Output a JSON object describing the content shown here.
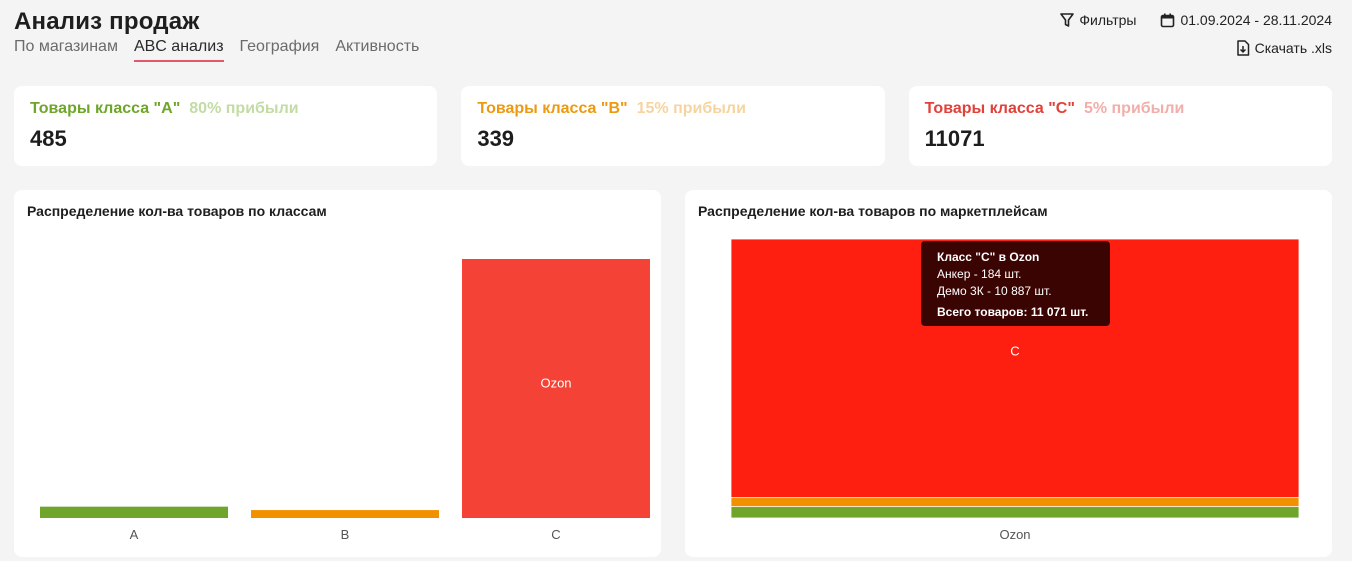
{
  "header": {
    "title": "Анализ продаж",
    "tabs": [
      {
        "label": "По магазинам",
        "active": false
      },
      {
        "label": "ABC анализ",
        "active": true
      },
      {
        "label": "География",
        "active": false
      },
      {
        "label": "Активность",
        "active": false
      }
    ],
    "filters_label": "Фильтры",
    "date_range": "01.09.2024 - 28.11.2024",
    "download_label": "Скачать .xls"
  },
  "cards": [
    {
      "label": "Товары класса \"A\"",
      "pct": "80% прибыли",
      "value": "485"
    },
    {
      "label": "Товары класса \"B\"",
      "pct": "15% прибыли",
      "value": "339"
    },
    {
      "label": "Товары класса \"C\"",
      "pct": "5% прибыли",
      "value": "11071"
    }
  ],
  "colors": {
    "A": "#6fa52b",
    "B": "#f29100",
    "C": "#f44336",
    "C_stack": "#ff1f10"
  },
  "left_chart": {
    "title": "Распределение кол-ва товаров по классам"
  },
  "right_chart": {
    "title": "Распределение кол-ва товаров по маркетплейсам",
    "tooltip": {
      "title": "Класс \"С\" в Ozon",
      "line1": "Анкер - 184 шт.",
      "line2": "Демо 3К - 10 887 шт.",
      "total": "Всего товаров: 11 071 шт."
    }
  },
  "chart_data": [
    {
      "type": "bar",
      "title": "Распределение кол-ва товаров по классам",
      "categories": [
        "A",
        "B",
        "C"
      ],
      "series": [
        {
          "name": "Ozon",
          "values": [
            485,
            339,
            11071
          ]
        }
      ],
      "bar_labels": [
        "",
        "",
        "Ozon"
      ]
    },
    {
      "type": "bar",
      "title": "Распределение кол-ва товаров по маркетплейсам",
      "stacked": true,
      "categories": [
        "Ozon"
      ],
      "series": [
        {
          "name": "A",
          "values": [
            485
          ]
        },
        {
          "name": "B",
          "values": [
            339
          ]
        },
        {
          "name": "C",
          "values": [
            11071
          ]
        }
      ],
      "segment_labels": [
        "",
        "",
        "C"
      ]
    }
  ]
}
